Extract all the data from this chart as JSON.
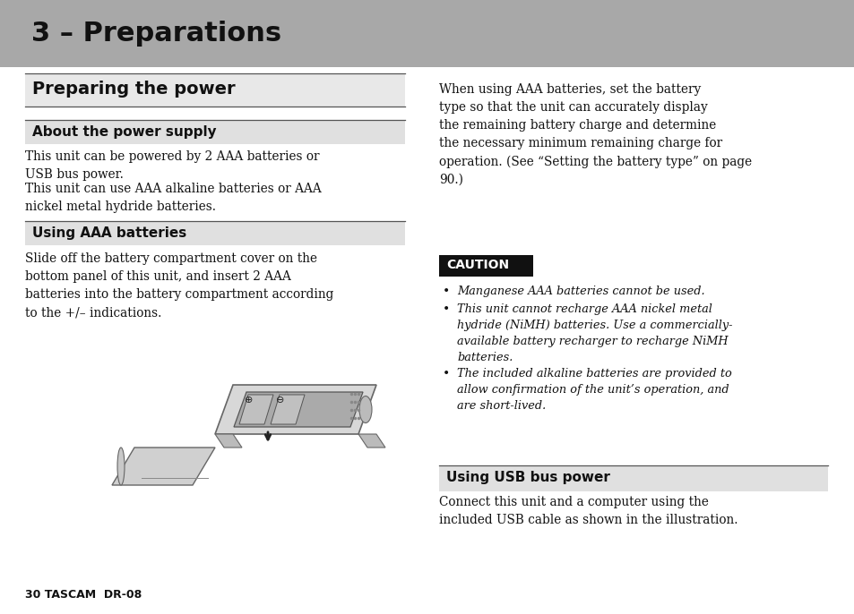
{
  "bg_color": "#ffffff",
  "header_bg": "#a8a8a8",
  "header_text": "3 – Preparations",
  "header_text_color": "#111111",
  "section1_title": "Preparing the power",
  "subsection1_title": "About the power supply",
  "subsection1_body1": "This unit can be powered by 2 AAA batteries or\nUSB bus power.",
  "subsection1_body2": "This unit can use AAA alkaline batteries or AAA\nnickel metal hydride batteries.",
  "subsection2_title": "Using AAA batteries",
  "subsection2_body": "Slide off the battery compartment cover on the\nbottom panel of this unit, and insert 2 AAA\nbatteries into the battery compartment according\nto the +/– indications.",
  "right_body1": "When using AAA batteries, set the battery\ntype so that the unit can accurately display\nthe remaining battery charge and determine\nthe necessary minimum remaining charge for\noperation. (See “Setting the battery type” on page\n90.)",
  "caution_label": "CAUTION",
  "caution_bg": "#111111",
  "caution_text_color": "#ffffff",
  "caution_bullet1": "Manganese AAA batteries cannot be used.",
  "caution_bullet2": "This unit cannot recharge AAA nickel metal\nhydride (NiMH) batteries. Use a commercially-\navailable battery recharger to recharge NiMH\nbatteries.",
  "caution_bullet3": "The included alkaline batteries are provided to\nallow confirmation of the unit’s operation, and\nare short-lived.",
  "section3_title": "Using USB bus power",
  "section3_body": "Connect this unit and a computer using the\nincluded USB cable as shown in the illustration.",
  "footer_text": "30 TASCAM  DR-08"
}
